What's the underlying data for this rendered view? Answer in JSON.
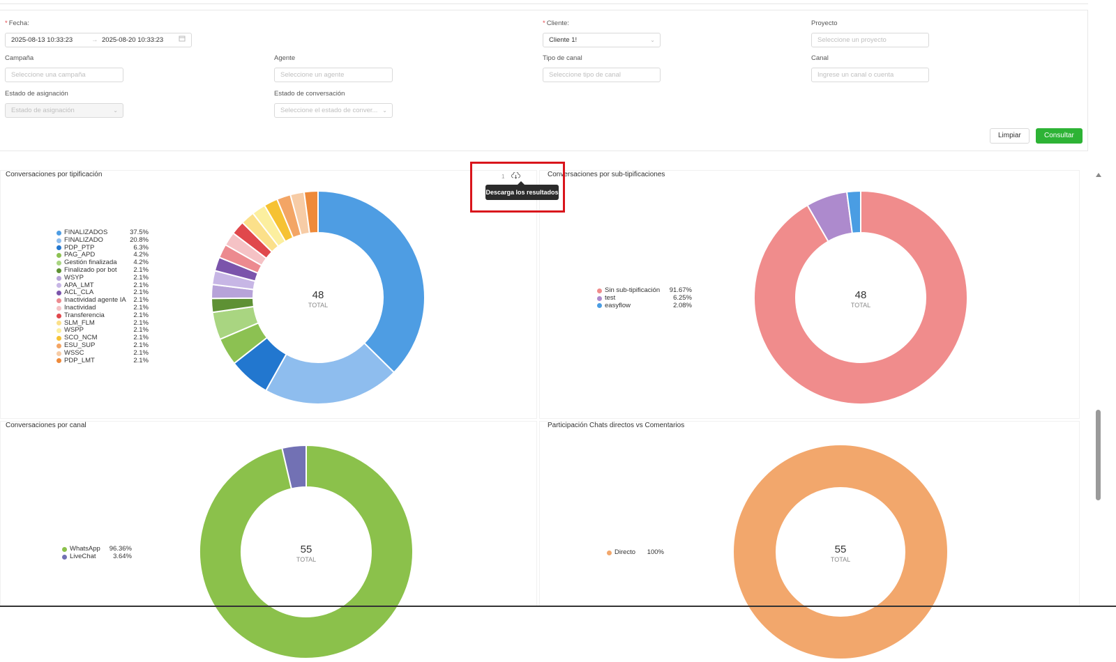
{
  "filters": {
    "fecha": {
      "label": "Fecha",
      "required": "*",
      "start": "2025-08-13 10:33:23",
      "arrow": "→",
      "end": "2025-08-20 10:33:23"
    },
    "cliente": {
      "label": "Cliente",
      "required": "*",
      "value": "Cliente 1!"
    },
    "proyecto": {
      "label": "Proyecto",
      "placeholder": "Seleccione un proyecto"
    },
    "campana": {
      "label": "Campaña",
      "placeholder": "Seleccione una campaña"
    },
    "agente": {
      "label": "Agente",
      "placeholder": "Seleccione un agente"
    },
    "tipo_canal": {
      "label": "Tipo de canal",
      "placeholder": "Seleccione tipo de canal"
    },
    "canal": {
      "label": "Canal",
      "placeholder": "Ingrese un canal o cuenta"
    },
    "estado_asignacion": {
      "label": "Estado de asignación",
      "placeholder": "Estado de asignación"
    },
    "estado_conversacion": {
      "label": "Estado de conversación",
      "placeholder": "Seleccione el estado de conver..."
    }
  },
  "buttons": {
    "clear": "Limpiar",
    "submit": "Consultar"
  },
  "toolbar": {
    "count": "1",
    "tooltip": "Descarga los resultados",
    "download_icon": "cloud-download-icon"
  },
  "total_label": "TOTAL",
  "chart_data": [
    {
      "type": "pie",
      "title": "Conversaciones por tipificación",
      "total": "48",
      "categories": [
        "FINALIZADOS",
        "FINALIZADO",
        "PDP_PTP",
        "PAG_APD",
        "Gestión finalizada",
        "Finalizado por bot",
        "WSYP",
        "APA_LMT",
        "ACL_CLA",
        "Inactividad agente IA",
        "Inactividad",
        "Transferencia",
        "SLM_FLM",
        "WSPP",
        "SCO_NCM",
        "ESU_SUP",
        "WSSC",
        "PDP_LMT"
      ],
      "values": [
        37.5,
        20.8,
        6.3,
        4.2,
        4.2,
        2.1,
        2.1,
        2.1,
        2.1,
        2.1,
        2.1,
        2.1,
        2.1,
        2.1,
        2.1,
        2.1,
        2.1,
        2.1
      ],
      "labels": [
        "37.5%",
        "20.8%",
        "6.3%",
        "4.2%",
        "4.2%",
        "2.1%",
        "2.1%",
        "2.1%",
        "2.1%",
        "2.1%",
        "2.1%",
        "2.1%",
        "2.1%",
        "2.1%",
        "2.1%",
        "2.1%",
        "2.1%",
        "2.1%"
      ],
      "colors": [
        "#4e9de3",
        "#8ebdee",
        "#2277cf",
        "#8cc152",
        "#a9d581",
        "#5e9134",
        "#b7a3d9",
        "#c7b6e5",
        "#7b54ab",
        "#ec8a8f",
        "#f5c2c5",
        "#e0484c",
        "#fbe08a",
        "#fcef9f",
        "#f6c233",
        "#f3a565",
        "#f7cca6",
        "#ee8a3a"
      ]
    },
    {
      "type": "pie",
      "title": "Conversaciones por sub-tipificaciones",
      "total": "48",
      "categories": [
        "Sin sub-tipificación",
        "test",
        "easyflow"
      ],
      "values": [
        91.67,
        6.25,
        2.08
      ],
      "labels": [
        "91.67%",
        "6.25%",
        "2.08%"
      ],
      "colors": [
        "#f08c8c",
        "#ad8acd",
        "#4a9de3"
      ]
    },
    {
      "type": "pie",
      "title": "Conversaciones por canal",
      "total": "55",
      "categories": [
        "WhatsApp",
        "LiveChat"
      ],
      "values": [
        96.36,
        3.64
      ],
      "labels": [
        "96.36%",
        "3.64%"
      ],
      "colors": [
        "#8bc14b",
        "#7271b4"
      ]
    },
    {
      "type": "pie",
      "title": "Participación Chats directos vs Comentarios",
      "total": "55",
      "categories": [
        "Directo"
      ],
      "values": [
        100
      ],
      "labels": [
        "100%"
      ],
      "colors": [
        "#f2a76c"
      ]
    }
  ]
}
